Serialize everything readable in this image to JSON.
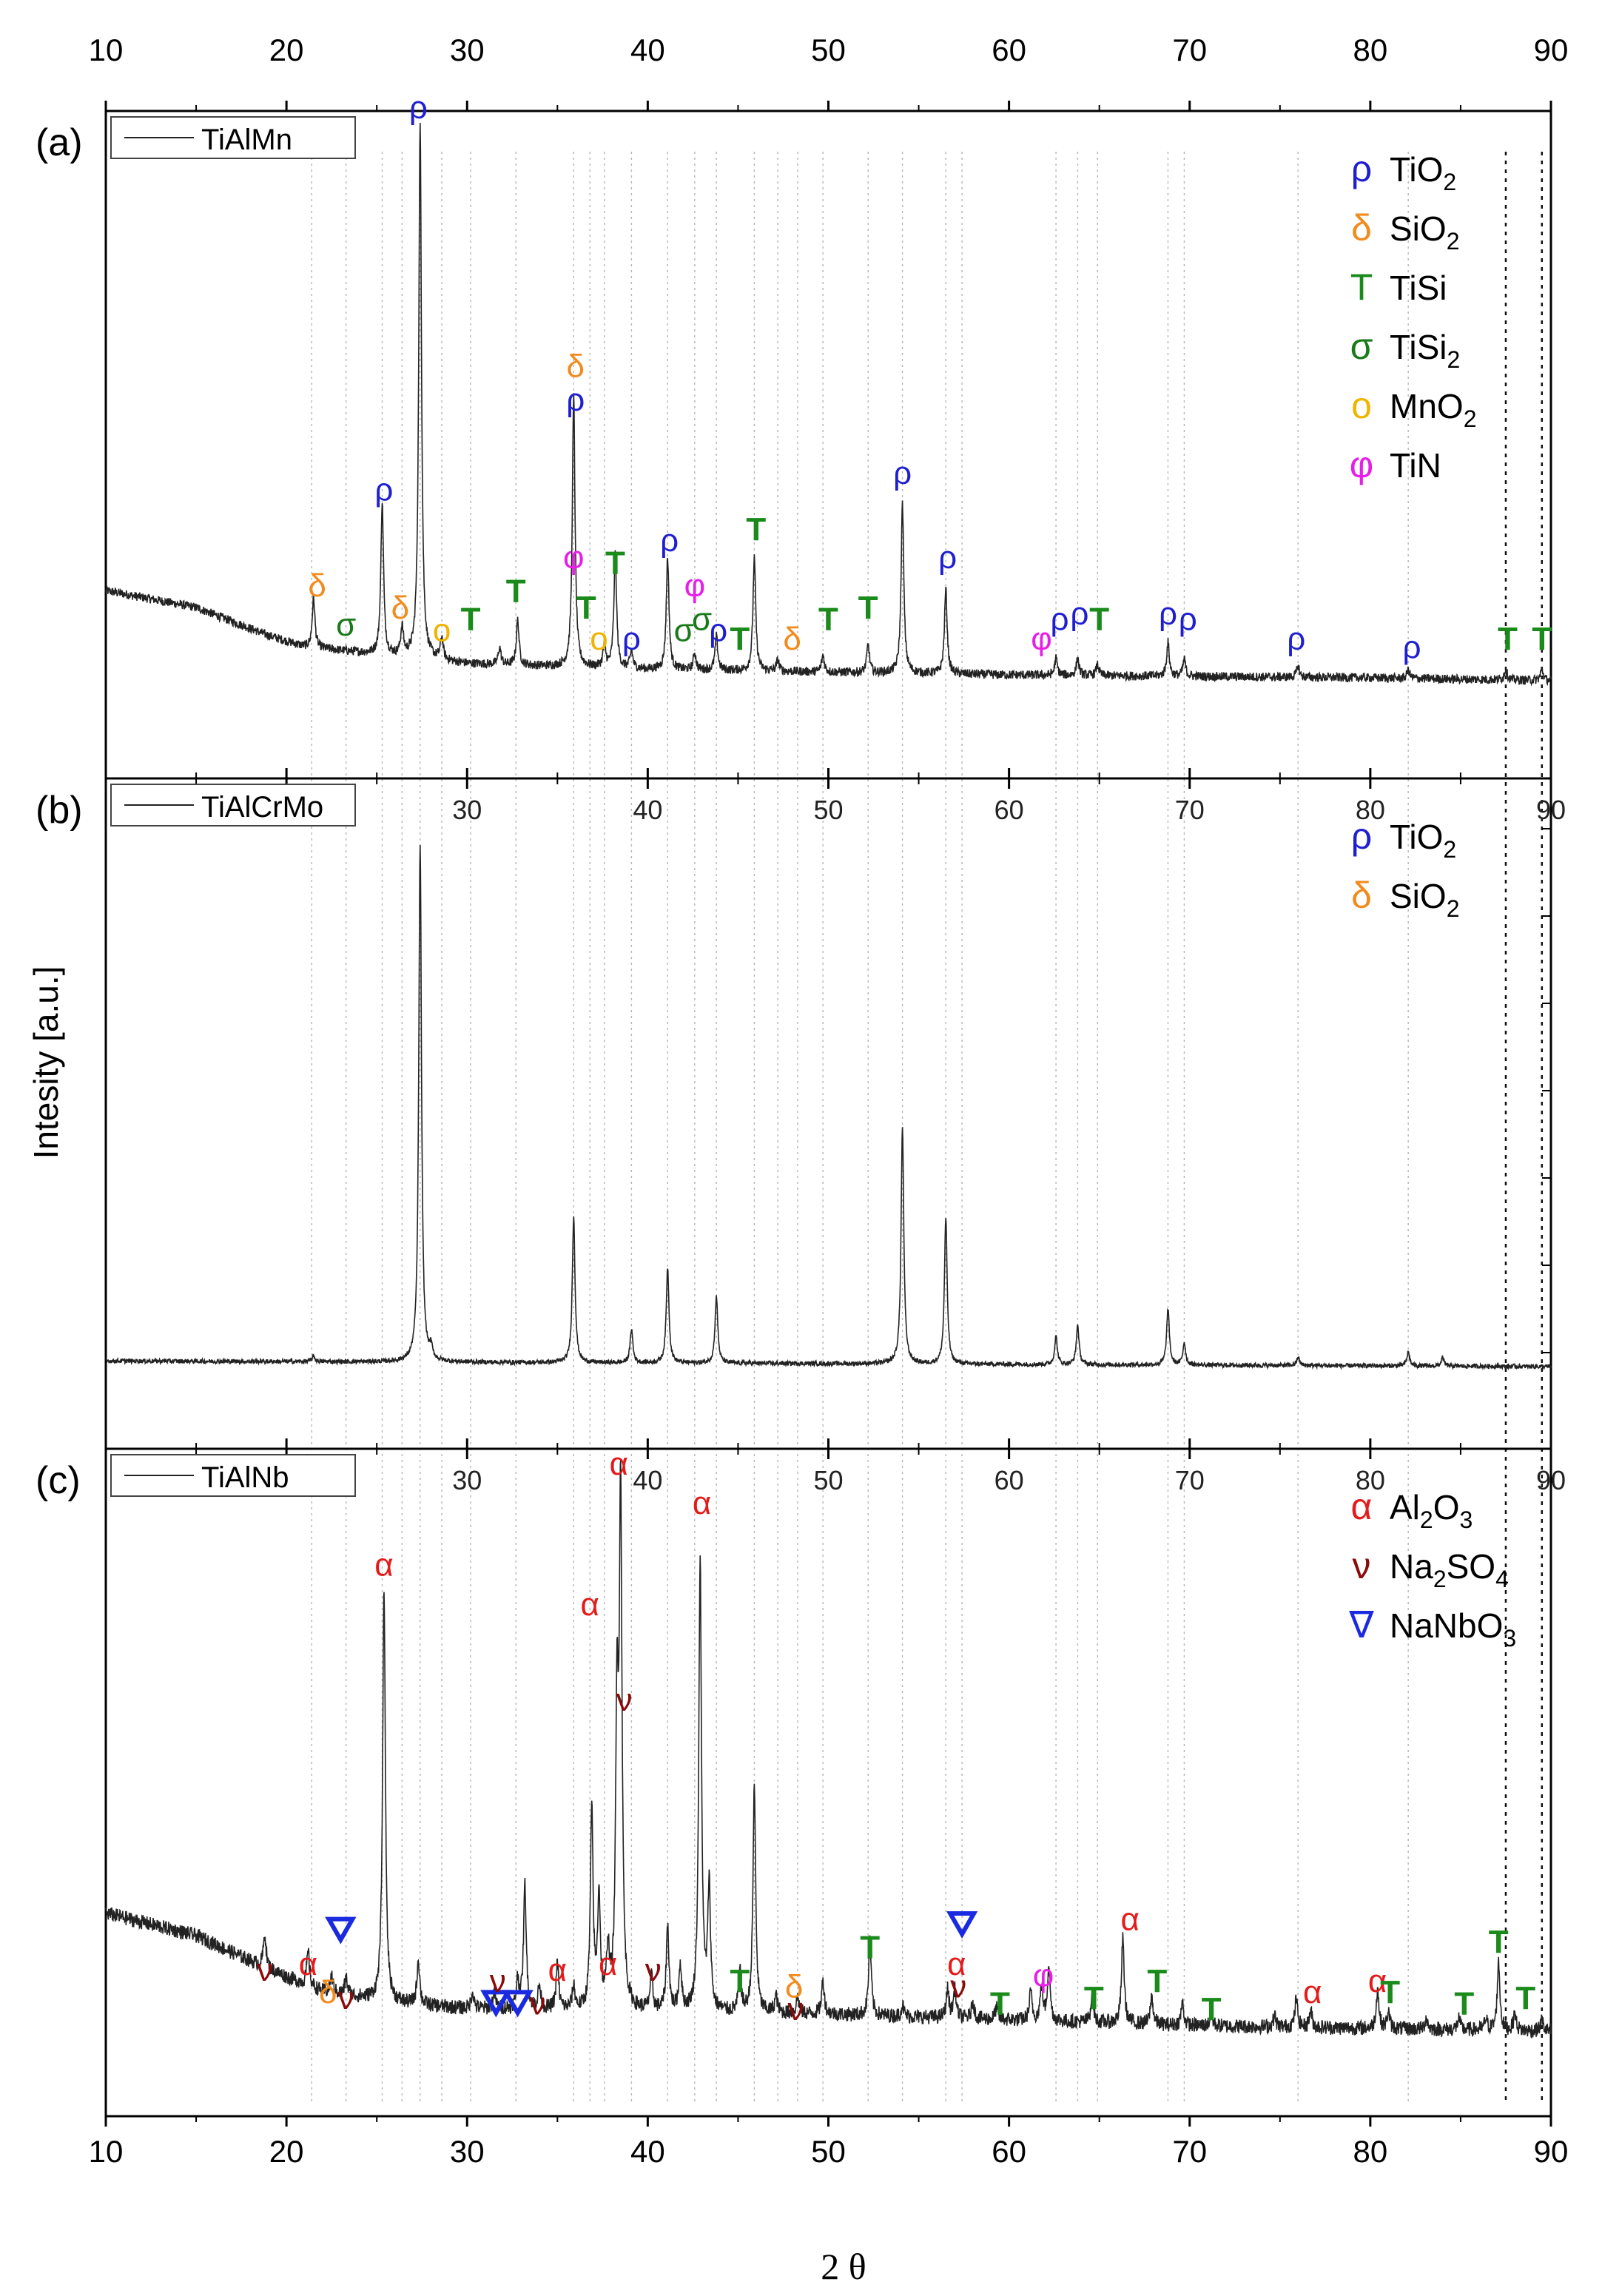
{
  "chart_data": {
    "type": "line",
    "title": "",
    "xlabel": "2 θ",
    "ylabel": "Intesity [a.u.]",
    "xlim": [
      10,
      90
    ],
    "x_ticks": [
      "10",
      "20",
      "30",
      "40",
      "50",
      "60",
      "70",
      "80",
      "90"
    ],
    "inner_ticks": [
      "30",
      "40",
      "50",
      "60",
      "70",
      "80",
      "90"
    ],
    "colors": {
      "rho": "#1f1fd0",
      "delta": "#f28b1e",
      "T": "#1a8a1a",
      "sigma": "#1a7a1a",
      "o": "#f0b400",
      "phi": "#e81ee8",
      "alpha": "#e51a1a",
      "nu": "#8b0a0a",
      "nabla": "#1a2ae0"
    },
    "guide_lines": [
      21.4,
      23.3,
      25.3,
      26.4,
      27.4,
      28.6,
      30.2,
      32.7,
      35.9,
      36.8,
      37.6,
      39.1,
      41.1,
      42.6,
      43.8,
      45.9,
      47.2,
      48.3,
      49.7,
      52.2,
      54.1,
      56.5,
      57.4,
      62.6,
      63.8,
      64.9,
      68.8,
      69.7,
      76.0,
      82.1,
      87.5,
      89.5
    ],
    "dotted_guides": [
      87.5,
      89.5
    ],
    "panels": [
      {
        "label": "(a)",
        "legend_name": "TiAlMn",
        "sample": "TiAlMn",
        "legend": [
          {
            "sym": "ρ",
            "text": "TiO",
            "sub": "2",
            "color": "rho"
          },
          {
            "sym": "δ",
            "text": "SiO",
            "sub": "2",
            "color": "delta"
          },
          {
            "sym": "T",
            "text": "TiSi",
            "sub": "",
            "color": "T"
          },
          {
            "sym": "σ",
            "text": "TiSi",
            "sub": "2",
            "color": "sigma"
          },
          {
            "sym": "o",
            "text": "MnO",
            "sub": "2",
            "color": "o"
          },
          {
            "sym": "φ",
            "text": "TiN",
            "sub": "",
            "color": "phi"
          }
        ],
        "baseline": [
          [
            10,
            0.18
          ],
          [
            15,
            0.15
          ],
          [
            19,
            0.1
          ],
          [
            21,
            0.08
          ],
          [
            24,
            0.07
          ],
          [
            30,
            0.05
          ],
          [
            40,
            0.04
          ],
          [
            60,
            0.03
          ],
          [
            80,
            0.025
          ],
          [
            90,
            0.02
          ]
        ],
        "noise": 0.008,
        "peaks": [
          [
            21.5,
            0.09
          ],
          [
            25.3,
            0.27
          ],
          [
            26.4,
            0.05
          ],
          [
            27.4,
            0.95
          ],
          [
            28.6,
            0.04
          ],
          [
            31.8,
            0.03
          ],
          [
            32.8,
            0.08
          ],
          [
            35.9,
            0.48
          ],
          [
            37.6,
            0.04
          ],
          [
            38.2,
            0.2
          ],
          [
            39.1,
            0.03
          ],
          [
            41.1,
            0.2
          ],
          [
            42.6,
            0.03
          ],
          [
            43.8,
            0.06
          ],
          [
            45.9,
            0.2
          ],
          [
            47.2,
            0.02
          ],
          [
            49.7,
            0.03
          ],
          [
            52.2,
            0.05
          ],
          [
            54.1,
            0.3
          ],
          [
            56.5,
            0.15
          ],
          [
            62.6,
            0.03
          ],
          [
            63.8,
            0.03
          ],
          [
            64.9,
            0.02
          ],
          [
            68.8,
            0.06
          ],
          [
            69.7,
            0.03
          ],
          [
            76.0,
            0.02
          ],
          [
            82.1,
            0.015
          ],
          [
            87.5,
            0.02
          ],
          [
            89.5,
            0.02
          ]
        ],
        "markers": [
          {
            "sym": "δ",
            "c": "delta",
            "x": 21.7,
            "y": 0.17
          },
          {
            "sym": "σ",
            "c": "sigma",
            "x": 23.3,
            "y": 0.1
          },
          {
            "sym": "ρ",
            "c": "rho",
            "x": 25.4,
            "y": 0.34
          },
          {
            "sym": "δ",
            "c": "delta",
            "x": 26.3,
            "y": 0.13
          },
          {
            "sym": "ρ",
            "c": "rho",
            "x": 27.3,
            "y": 1.02
          },
          {
            "sym": "o",
            "c": "o",
            "x": 28.6,
            "y": 0.09
          },
          {
            "sym": "T",
            "c": "T",
            "x": 30.2,
            "y": 0.11
          },
          {
            "sym": "T",
            "c": "T",
            "x": 32.7,
            "y": 0.16
          },
          {
            "sym": "φ",
            "c": "phi",
            "x": 35.9,
            "y": 0.22
          },
          {
            "sym": "ρ",
            "c": "rho",
            "x": 36.0,
            "y": 0.5
          },
          {
            "sym": "δ",
            "c": "delta",
            "x": 36.0,
            "y": 0.56
          },
          {
            "sym": "T",
            "c": "T",
            "x": 36.6,
            "y": 0.13
          },
          {
            "sym": "o",
            "c": "o",
            "x": 37.3,
            "y": 0.075
          },
          {
            "sym": "T",
            "c": "T",
            "x": 38.2,
            "y": 0.21
          },
          {
            "sym": "ρ",
            "c": "rho",
            "x": 39.1,
            "y": 0.075
          },
          {
            "sym": "ρ",
            "c": "rho",
            "x": 41.2,
            "y": 0.25
          },
          {
            "sym": "σ",
            "c": "sigma",
            "x": 42.0,
            "y": 0.09
          },
          {
            "sym": "φ",
            "c": "phi",
            "x": 42.6,
            "y": 0.17
          },
          {
            "sym": "σ",
            "c": "sigma",
            "x": 43.0,
            "y": 0.11
          },
          {
            "sym": "ρ",
            "c": "rho",
            "x": 43.9,
            "y": 0.09
          },
          {
            "sym": "T",
            "c": "T",
            "x": 45.1,
            "y": 0.075
          },
          {
            "sym": "T",
            "c": "T",
            "x": 46.0,
            "y": 0.27
          },
          {
            "sym": "δ",
            "c": "delta",
            "x": 48.0,
            "y": 0.075
          },
          {
            "sym": "T",
            "c": "T",
            "x": 50.0,
            "y": 0.11
          },
          {
            "sym": "T",
            "c": "T",
            "x": 52.2,
            "y": 0.13
          },
          {
            "sym": "ρ",
            "c": "rho",
            "x": 54.1,
            "y": 0.37
          },
          {
            "sym": "ρ",
            "c": "rho",
            "x": 56.6,
            "y": 0.22
          },
          {
            "sym": "φ",
            "c": "phi",
            "x": 61.8,
            "y": 0.075
          },
          {
            "sym": "ρ",
            "c": "rho",
            "x": 62.8,
            "y": 0.11
          },
          {
            "sym": "ρ",
            "c": "rho",
            "x": 63.9,
            "y": 0.12
          },
          {
            "sym": "T",
            "c": "T",
            "x": 65.0,
            "y": 0.11
          },
          {
            "sym": "ρ",
            "c": "rho",
            "x": 68.8,
            "y": 0.12
          },
          {
            "sym": "ρ",
            "c": "rho",
            "x": 69.9,
            "y": 0.11
          },
          {
            "sym": "ρ",
            "c": "rho",
            "x": 75.9,
            "y": 0.075
          },
          {
            "sym": "ρ",
            "c": "rho",
            "x": 82.3,
            "y": 0.06
          },
          {
            "sym": "T",
            "c": "T",
            "x": 87.6,
            "y": 0.075
          },
          {
            "sym": "T",
            "c": "T",
            "x": 89.5,
            "y": 0.075
          }
        ]
      },
      {
        "label": "(b)",
        "legend_name": "TiAlCrMo",
        "sample": "TiAlCrMo",
        "legend": [
          {
            "sym": "ρ",
            "text": "TiO",
            "sub": "2",
            "color": "rho"
          },
          {
            "sym": "δ",
            "text": "SiO",
            "sub": "2",
            "color": "delta"
          }
        ],
        "baseline": [
          [
            10,
            0.03
          ],
          [
            90,
            0.02
          ]
        ],
        "noise": 0.004,
        "peaks": [
          [
            21.5,
            0.01
          ],
          [
            27.4,
            0.92
          ],
          [
            28.0,
            0.02
          ],
          [
            35.9,
            0.26
          ],
          [
            39.1,
            0.06
          ],
          [
            41.1,
            0.17
          ],
          [
            43.8,
            0.12
          ],
          [
            54.1,
            0.42
          ],
          [
            56.5,
            0.26
          ],
          [
            62.6,
            0.05
          ],
          [
            63.8,
            0.07
          ],
          [
            68.8,
            0.1
          ],
          [
            69.7,
            0.04
          ],
          [
            76.0,
            0.015
          ],
          [
            82.1,
            0.025
          ],
          [
            84.0,
            0.015
          ]
        ],
        "markers": []
      },
      {
        "label": "(c)",
        "legend_name": "TiAlNb",
        "sample": "TiAlNb",
        "legend": [
          {
            "sym": "α",
            "text": "Al",
            "sub": "2",
            "text2": "O",
            "sub2": "3",
            "color": "alpha"
          },
          {
            "sym": "ν",
            "text": "Na",
            "sub": "2",
            "text2": "SO",
            "sub2": "4",
            "color": "nu"
          },
          {
            "sym": "∇",
            "text": "NaNbO",
            "sub": "3",
            "color": "nabla"
          }
        ],
        "baseline": [
          [
            10,
            0.24
          ],
          [
            15,
            0.2
          ],
          [
            19,
            0.14
          ],
          [
            22,
            0.1
          ],
          [
            26,
            0.08
          ],
          [
            30,
            0.07
          ],
          [
            40,
            0.065
          ],
          [
            50,
            0.06
          ],
          [
            60,
            0.05
          ],
          [
            70,
            0.04
          ],
          [
            80,
            0.035
          ],
          [
            90,
            0.03
          ]
        ],
        "noise": 0.013,
        "peaks": [
          [
            18.8,
            0.06
          ],
          [
            21.2,
            0.06
          ],
          [
            22.5,
            0.03
          ],
          [
            23.3,
            0.03
          ],
          [
            25.4,
            0.74
          ],
          [
            27.3,
            0.08
          ],
          [
            30.3,
            0.03
          ],
          [
            31.5,
            0.03
          ],
          [
            32.8,
            0.05
          ],
          [
            33.2,
            0.22
          ],
          [
            34.0,
            0.04
          ],
          [
            35.0,
            0.08
          ],
          [
            35.9,
            0.04
          ],
          [
            36.9,
            0.35
          ],
          [
            37.3,
            0.2
          ],
          [
            37.8,
            0.1
          ],
          [
            38.3,
            0.5
          ],
          [
            38.5,
            0.9
          ],
          [
            40.2,
            0.06
          ],
          [
            41.1,
            0.15
          ],
          [
            41.8,
            0.08
          ],
          [
            42.9,
            0.8
          ],
          [
            43.4,
            0.22
          ],
          [
            45.1,
            0.07
          ],
          [
            45.9,
            0.4
          ],
          [
            47.1,
            0.03
          ],
          [
            48.3,
            0.03
          ],
          [
            49.7,
            0.06
          ],
          [
            52.3,
            0.13
          ],
          [
            54.1,
            0.02
          ],
          [
            56.6,
            0.05
          ],
          [
            57.0,
            0.05
          ],
          [
            58.0,
            0.03
          ],
          [
            59.3,
            0.02
          ],
          [
            61.2,
            0.05
          ],
          [
            61.8,
            0.06
          ],
          [
            62.2,
            0.1
          ],
          [
            64.6,
            0.05
          ],
          [
            66.3,
            0.15
          ],
          [
            67.9,
            0.05
          ],
          [
            69.6,
            0.04
          ],
          [
            71.2,
            0.02
          ],
          [
            74.7,
            0.02
          ],
          [
            75.9,
            0.05
          ],
          [
            76.7,
            0.03
          ],
          [
            80.4,
            0.07
          ],
          [
            81.0,
            0.03
          ],
          [
            83.1,
            0.02
          ],
          [
            84.9,
            0.02
          ],
          [
            86.4,
            0.02
          ],
          [
            87.1,
            0.12
          ],
          [
            88.0,
            0.03
          ],
          [
            89.5,
            0.02
          ]
        ],
        "markers": [
          {
            "sym": "ν",
            "c": "nu",
            "x": 18.8,
            "y": 0.12
          },
          {
            "sym": "α",
            "c": "alpha",
            "x": 21.2,
            "y": 0.13
          },
          {
            "sym": "δ",
            "c": "delta",
            "x": 22.3,
            "y": 0.08
          },
          {
            "sym": "∇",
            "c": "nabla",
            "x": 23.0,
            "y": 0.19
          },
          {
            "sym": "ν",
            "c": "nu",
            "x": 23.3,
            "y": 0.07
          },
          {
            "sym": "α",
            "c": "alpha",
            "x": 25.4,
            "y": 0.84
          },
          {
            "sym": "∇",
            "c": "nabla",
            "x": 31.6,
            "y": 0.06
          },
          {
            "sym": "ν",
            "c": "nu",
            "x": 31.7,
            "y": 0.1
          },
          {
            "sym": "∇",
            "c": "nabla",
            "x": 32.8,
            "y": 0.06
          },
          {
            "sym": "ν",
            "c": "nu",
            "x": 33.9,
            "y": 0.06
          },
          {
            "sym": "α",
            "c": "alpha",
            "x": 35.0,
            "y": 0.12
          },
          {
            "sym": "α",
            "c": "alpha",
            "x": 36.8,
            "y": 0.77
          },
          {
            "sym": "α",
            "c": "alpha",
            "x": 37.8,
            "y": 0.13
          },
          {
            "sym": "α",
            "c": "alpha",
            "x": 38.4,
            "y": 1.02
          },
          {
            "sym": "ν",
            "c": "nu",
            "x": 38.7,
            "y": 0.6
          },
          {
            "sym": "ν",
            "c": "nu",
            "x": 40.3,
            "y": 0.12
          },
          {
            "sym": "α",
            "c": "alpha",
            "x": 43.0,
            "y": 0.95
          },
          {
            "sym": "T",
            "c": "T",
            "x": 45.1,
            "y": 0.1
          },
          {
            "sym": "δ",
            "c": "delta",
            "x": 48.1,
            "y": 0.09
          },
          {
            "sym": "ν",
            "c": "nu",
            "x": 48.2,
            "y": 0.05
          },
          {
            "sym": "T",
            "c": "T",
            "x": 52.3,
            "y": 0.16
          },
          {
            "sym": "∇",
            "c": "nabla",
            "x": 57.4,
            "y": 0.2
          },
          {
            "sym": "α",
            "c": "alpha",
            "x": 57.1,
            "y": 0.13
          },
          {
            "sym": "ν",
            "c": "nu",
            "x": 57.2,
            "y": 0.09
          },
          {
            "sym": "T",
            "c": "T",
            "x": 59.5,
            "y": 0.06
          },
          {
            "sym": "φ",
            "c": "phi",
            "x": 61.9,
            "y": 0.11
          },
          {
            "sym": "T",
            "c": "T",
            "x": 64.7,
            "y": 0.07
          },
          {
            "sym": "α",
            "c": "alpha",
            "x": 66.7,
            "y": 0.21
          },
          {
            "sym": "T",
            "c": "T",
            "x": 68.2,
            "y": 0.1
          },
          {
            "sym": "T",
            "c": "T",
            "x": 71.2,
            "y": 0.05
          },
          {
            "sym": "α",
            "c": "alpha",
            "x": 76.8,
            "y": 0.08
          },
          {
            "sym": "α",
            "c": "alpha",
            "x": 80.4,
            "y": 0.1
          },
          {
            "sym": "T",
            "c": "T",
            "x": 81.1,
            "y": 0.08
          },
          {
            "sym": "T",
            "c": "T",
            "x": 85.2,
            "y": 0.06
          },
          {
            "sym": "T",
            "c": "T",
            "x": 87.1,
            "y": 0.17
          },
          {
            "sym": "T",
            "c": "T",
            "x": 88.6,
            "y": 0.07
          }
        ]
      }
    ]
  }
}
